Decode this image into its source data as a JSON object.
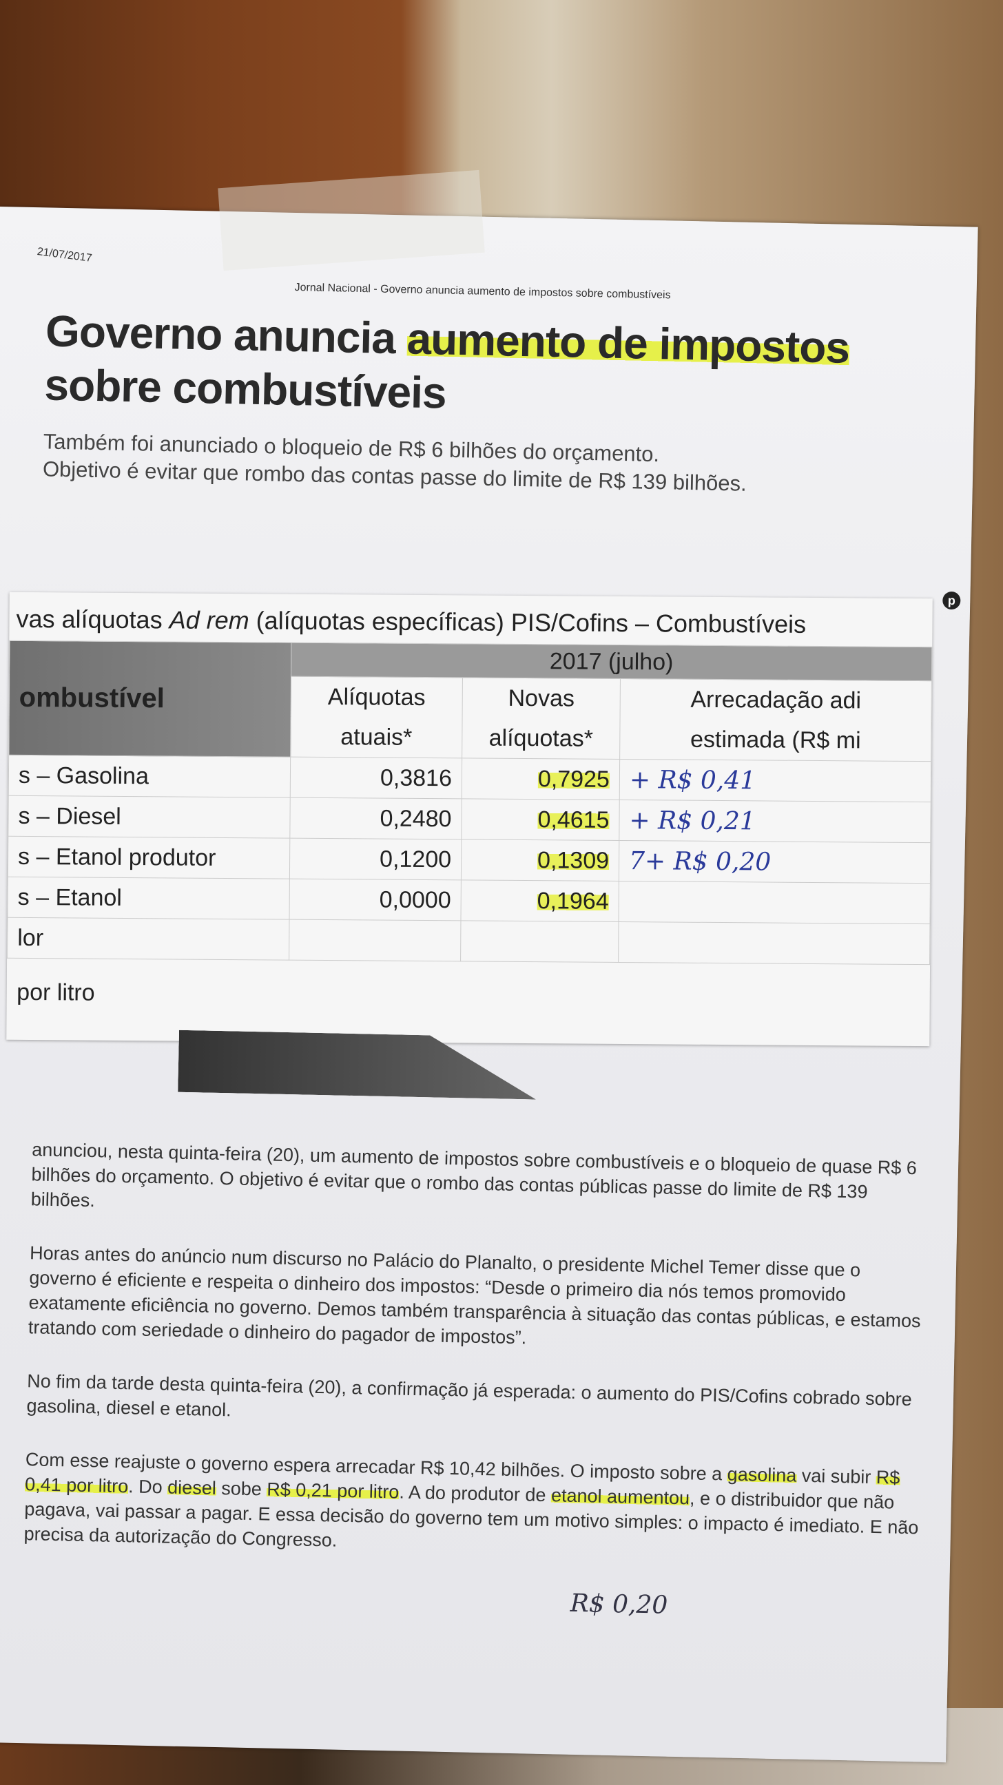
{
  "document": {
    "date": "21/07/2017",
    "header": "Jornal Nacional - Governo anuncia aumento de impostos sobre combustíveis",
    "title_part1": "Governo anuncia ",
    "title_highlight": "aumento de impostos",
    "title_part2": " sobre combustíveis",
    "subtitle_line1": "Também foi anunciado o bloqueio de R$ 6 bilhões do orçamento.",
    "subtitle_line2": "Objetivo é evitar que rombo das contas passe do limite de R$ 139 bilhões.",
    "highlight_color": "#e6f04a"
  },
  "table": {
    "caption_prefix": "vas alíquotas ",
    "caption_italic": "Ad rem",
    "caption_suffix": " (alíquotas específicas) PIS/Cofins – Combustíveis",
    "col_fuel": "ombustível",
    "year_band": "2017 (julho)",
    "col_current_1": "Alíquotas",
    "col_current_2": "atuais*",
    "col_new_1": "Novas",
    "col_new_2": "alíquotas*",
    "col_revenue_1": "Arrecadação adi",
    "col_revenue_2": "estimada (R$ mi",
    "rows": [
      {
        "fuel": "s – Gasolina",
        "current": "0,3816",
        "new": "0,7925",
        "note": "+ R$ 0,41"
      },
      {
        "fuel": "s – Diesel",
        "current": "0,2480",
        "new": "0,4615",
        "note": "+ R$ 0,21"
      },
      {
        "fuel": "s – Etanol produtor",
        "current": "0,1200",
        "new": "0,1309",
        "note": "7+ R$ 0,20"
      },
      {
        "fuel": "s – Etanol",
        "current": "0,0000",
        "new": "0,1964",
        "note": ""
      },
      {
        "fuel": "lor",
        "current": "",
        "new": "",
        "note": ""
      }
    ],
    "footnote": "por litro"
  },
  "body": {
    "p1": "anunciou, nesta quinta-feira (20), um aumento de impostos sobre combustíveis e o bloqueio de quase R$ 6 bilhões do orçamento. O objetivo é evitar que o rombo das contas públicas passe do limite de R$ 139 bilhões.",
    "p2": "Horas antes do anúncio num discurso no Palácio do Planalto, o presidente Michel Temer disse que o governo é eficiente e respeita o dinheiro dos impostos: “Desde o primeiro dia nós temos promovido exatamente eficiência no governo. Demos também transparência à situação das contas públicas, e estamos tratando com seriedade o dinheiro do pagador de impostos”.",
    "p3": "No fim da tarde desta quinta-feira (20), a confirmação já esperada: o aumento do PIS/Cofins cobrado sobre gasolina, diesel e etanol.",
    "p4a": "Com esse reajuste o governo espera arrecadar R$ 10,42 bilhões. O imposto sobre a ",
    "p4_h1": "gasolina",
    "p4b": " vai subir ",
    "p4_h2": "R$ 0,41 por litro",
    "p4c": ". Do ",
    "p4_h3": "diesel",
    "p4d": " sobe ",
    "p4_h4": "R$ 0,21 por litro",
    "p4e": ". A do produtor de ",
    "p4_h5": "etanol aumentou",
    "p4f": ", e o distribuidor que não pagava, vai passar a pagar. E essa decisão do governo tem um motivo simples: o impacto é imediato. E não precisa da autorização do Congresso.",
    "handwritten_note": "R$ 0,20"
  },
  "icons": {
    "pin": "pinterest-icon"
  }
}
